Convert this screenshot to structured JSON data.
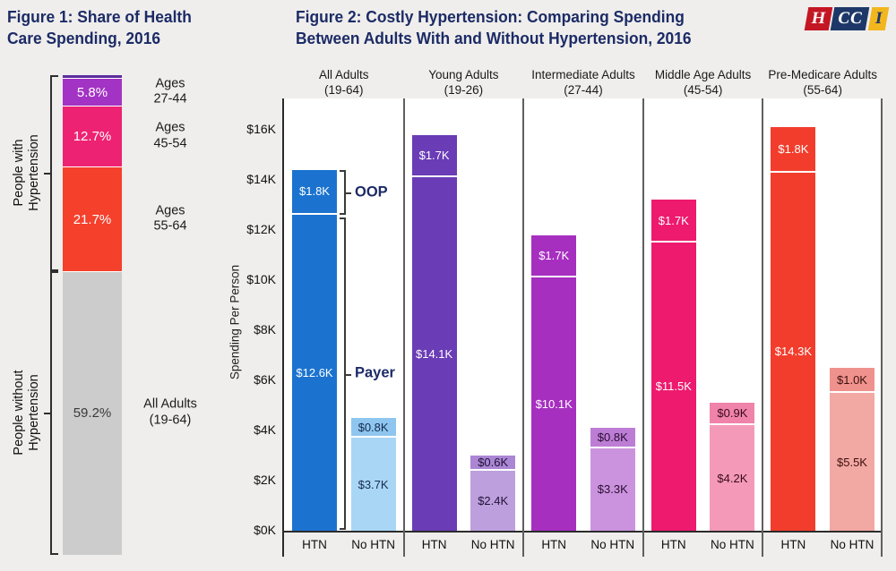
{
  "colors": {
    "background": "#efeeec",
    "plot_background": "#ffffff",
    "title_navy": "#1c2b66",
    "axis_line": "#2b2b2b",
    "group_divider": "#5f5f5f",
    "bracket": "#2e2e2e"
  },
  "figure1": {
    "title_line1": "Figure 1: Share of Health",
    "title_line2": "Care Spending, 2016",
    "group_brackets": [
      {
        "label": "People with\nHypertension",
        "from_segment": 0,
        "to_segment": 3
      },
      {
        "label": "People without\nHypertension",
        "from_segment": 4,
        "to_segment": 4
      }
    ],
    "segments": [
      {
        "value_label": "",
        "percent": 0.6,
        "color": "#5b2d9e",
        "side_label": "",
        "text_color": "#ffffff"
      },
      {
        "value_label": "5.8%",
        "percent": 5.8,
        "color": "#a233c4",
        "side_label": "Ages\n27-44",
        "text_color": "#ffffff"
      },
      {
        "value_label": "12.7%",
        "percent": 12.7,
        "color": "#ee2272",
        "side_label": "Ages\n45-54",
        "text_color": "#ffffff"
      },
      {
        "value_label": "21.7%",
        "percent": 21.7,
        "color": "#f5402c",
        "side_label": "Ages\n55-64",
        "text_color": "#ffffff"
      },
      {
        "value_label": "59.2%",
        "percent": 59.2,
        "color": "#cccccc",
        "side_label": "All Adults\n(19-64)",
        "text_color": "#3a3a3a"
      }
    ]
  },
  "figure2": {
    "title_line1": "Figure 2: Costly Hypertension: Comparing Spending",
    "title_line2": "Between Adults With and Without Hypertension, 2016",
    "y_axis_label": "Spending Per Person",
    "y_ticks": [
      "$0K",
      "$2K",
      "$4K",
      "$6K",
      "$8K",
      "$10K",
      "$12K",
      "$14K",
      "$16K"
    ],
    "bar_category_labels": [
      "HTN",
      "No HTN"
    ],
    "annotations": {
      "oop_label": "OOP",
      "payer_label": "Payer"
    },
    "groups": [
      {
        "header": "All Adults",
        "subheader": "(19-64)",
        "htn": {
          "payer_value": 12.6,
          "payer_label": "$12.6K",
          "oop_value": 1.8,
          "oop_label": "$1.8K",
          "payer_color": "#1b73cf",
          "oop_color": "#1b73cf",
          "text_color": "#ffffff"
        },
        "no_htn": {
          "payer_value": 3.7,
          "payer_label": "$3.7K",
          "oop_value": 0.8,
          "oop_label": "$0.8K",
          "payer_color": "#a9d6f5",
          "oop_color": "#8fc6f0",
          "text_color": "#152a4e"
        }
      },
      {
        "header": "Young Adults",
        "subheader": "(19-26)",
        "htn": {
          "payer_value": 14.1,
          "payer_label": "$14.1K",
          "oop_value": 1.7,
          "oop_label": "$1.7K",
          "payer_color": "#6a3cb5",
          "oop_color": "#6a3cb5",
          "text_color": "#ffffff"
        },
        "no_htn": {
          "payer_value": 2.4,
          "payer_label": "$2.4K",
          "oop_value": 0.6,
          "oop_label": "$0.6K",
          "payer_color": "#bd9fdd",
          "oop_color": "#ab86d4",
          "text_color": "#1f1235"
        }
      },
      {
        "header": "Intermediate Adults",
        "subheader": "(27-44)",
        "htn": {
          "payer_value": 10.1,
          "payer_label": "$10.1K",
          "oop_value": 1.7,
          "oop_label": "$1.7K",
          "payer_color": "#a62fc0",
          "oop_color": "#a62fc0",
          "text_color": "#ffffff"
        },
        "no_htn": {
          "payer_value": 3.3,
          "payer_label": "$3.3K",
          "oop_value": 0.8,
          "oop_label": "$0.8K",
          "payer_color": "#cb93dd",
          "oop_color": "#bd7dd4",
          "text_color": "#2a0e33"
        }
      },
      {
        "header": "Middle Age Adults",
        "subheader": "(45-54)",
        "htn": {
          "payer_value": 11.5,
          "payer_label": "$11.5K",
          "oop_value": 1.7,
          "oop_label": "$1.7K",
          "payer_color": "#ed1a6e",
          "oop_color": "#ed1a6e",
          "text_color": "#ffffff"
        },
        "no_htn": {
          "payer_value": 4.2,
          "payer_label": "$4.2K",
          "oop_value": 0.9,
          "oop_label": "$0.9K",
          "payer_color": "#f49ab8",
          "oop_color": "#f083a9",
          "text_color": "#3a0a1d"
        }
      },
      {
        "header": "Pre-Medicare Adults",
        "subheader": "(55-64)",
        "htn": {
          "payer_value": 14.3,
          "payer_label": "$14.3K",
          "oop_value": 1.8,
          "oop_label": "$1.8K",
          "payer_color": "#f23d2d",
          "oop_color": "#f23d2d",
          "text_color": "#ffffff"
        },
        "no_htn": {
          "payer_value": 5.5,
          "payer_label": "$5.5K",
          "oop_value": 1.0,
          "oop_label": "$1.0K",
          "payer_color": "#f2a8a3",
          "oop_color": "#ef928d",
          "text_color": "#3d100c"
        }
      }
    ]
  },
  "logo": {
    "letters": [
      {
        "text": "H",
        "bg": "#c41623",
        "fg": "#ffffff"
      },
      {
        "text": "CC",
        "bg": "#1d3868",
        "fg": "#ffffff"
      },
      {
        "text": "I",
        "bg": "#f2b71e",
        "fg": "#1d3868"
      }
    ]
  },
  "chart_data": [
    {
      "type": "bar",
      "subtype": "single-stacked-100pct-column",
      "title": "Figure 1: Share of Health Care Spending, 2016",
      "categories": [
        "Ages 19-26 (unlabeled sliver)",
        "Ages 27-44",
        "Ages 45-54",
        "Ages 55-64",
        "All Adults (19-64) without hypertension"
      ],
      "values_percent": [
        0.6,
        5.8,
        12.7,
        21.7,
        59.2
      ],
      "data_labels_shown": [
        "",
        "5.8%",
        "12.7%",
        "21.7%",
        "59.2%"
      ],
      "segment_groups": [
        "People with Hypertension",
        "People with Hypertension",
        "People with Hypertension",
        "People with Hypertension",
        "People without Hypertension"
      ],
      "legend": "none",
      "grid": false
    },
    {
      "type": "bar",
      "subtype": "grouped-stacked-columns",
      "title": "Figure 2: Costly Hypertension: Comparing Spending Between Adults With and Without Hypertension, 2016",
      "xlabel": "",
      "ylabel": "Spending Per Person",
      "ylim_dollars": [
        0,
        16500
      ],
      "ytick_labels": [
        "$0K",
        "$2K",
        "$4K",
        "$6K",
        "$8K",
        "$10K",
        "$12K",
        "$14K",
        "$16K"
      ],
      "categories": [
        "All Adults (19-64)",
        "Young Adults (19-26)",
        "Intermediate Adults (27-44)",
        "Middle Age Adults (45-54)",
        "Pre-Medicare Adults (55-64)"
      ],
      "bars_per_category": [
        "HTN",
        "No HTN"
      ],
      "stack_components": [
        "Payer",
        "OOP"
      ],
      "series": [
        {
          "name": "HTN Payer ($K)",
          "values": [
            12.6,
            14.1,
            10.1,
            11.5,
            14.3
          ]
        },
        {
          "name": "HTN OOP ($K)",
          "values": [
            1.8,
            1.7,
            1.7,
            1.7,
            1.8
          ]
        },
        {
          "name": "No HTN Payer ($K)",
          "values": [
            3.7,
            2.4,
            3.3,
            4.2,
            5.5
          ]
        },
        {
          "name": "No HTN OOP ($K)",
          "values": [
            0.8,
            0.6,
            0.8,
            0.9,
            1.0
          ]
        }
      ],
      "annotations": [
        "OOP bracket on top segment of first HTN bar",
        "Payer bracket on bottom segment of first HTN bar"
      ],
      "legend": "none",
      "grid": false
    }
  ]
}
